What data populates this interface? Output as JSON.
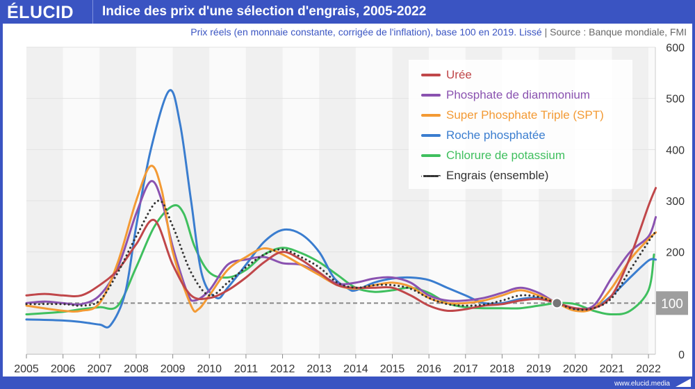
{
  "header": {
    "logo": "ÉLUCID",
    "title": "Indice des prix d'une sélection d'engrais, 2005-2022"
  },
  "subtitle": {
    "text": "Prix réels (en monnaie constante, corrigée de l'inflation), base 100 en 2019. Lissé",
    "sep": " | ",
    "source": "Source : Banque mondiale, FMI"
  },
  "footer": {
    "url": "www.elucid.media"
  },
  "chart_data": {
    "type": "line",
    "title": "Indice des prix d'une sélection d'engrais, 2005-2022",
    "xlabel": "",
    "ylabel": "",
    "xlim": [
      2005,
      2022.2
    ],
    "ylim": [
      0,
      600
    ],
    "xticks": [
      "2005",
      "2006",
      "2007",
      "2008",
      "2009",
      "2010",
      "2011",
      "2012",
      "2013",
      "2014",
      "2015",
      "2016",
      "2017",
      "2018",
      "2019",
      "2020",
      "2021",
      "2022"
    ],
    "yticks": [
      "0",
      "100",
      "200",
      "300",
      "400",
      "500",
      "600"
    ],
    "reference": {
      "value": 100,
      "label": "100",
      "marker_x": 2019.5
    },
    "legend_position": "top-right",
    "series": [
      {
        "name": "Urée",
        "color": "#c0474a",
        "style": "solid",
        "x": [
          2005,
          2005.5,
          2006,
          2006.5,
          2007,
          2007.5,
          2008,
          2008.5,
          2009,
          2009.5,
          2010,
          2010.5,
          2011,
          2011.5,
          2012,
          2012.5,
          2013,
          2013.5,
          2014,
          2014.5,
          2015,
          2015.5,
          2016,
          2016.5,
          2017,
          2017.5,
          2018,
          2018.5,
          2019,
          2019.5,
          2020,
          2020.5,
          2021,
          2021.5,
          2022,
          2022.2
        ],
        "y": [
          115,
          118,
          115,
          115,
          135,
          165,
          215,
          262,
          175,
          115,
          110,
          125,
          150,
          180,
          200,
          185,
          160,
          135,
          130,
          130,
          130,
          115,
          95,
          85,
          88,
          95,
          98,
          105,
          108,
          100,
          90,
          90,
          115,
          190,
          290,
          325
        ]
      },
      {
        "name": "Phosphate de diammonium",
        "color": "#8a52b0",
        "style": "solid",
        "x": [
          2005,
          2005.5,
          2006,
          2006.5,
          2007,
          2007.5,
          2008,
          2008.4,
          2008.7,
          2009,
          2009.4,
          2009.6,
          2010,
          2010.5,
          2011,
          2011.5,
          2012,
          2012.5,
          2013,
          2013.5,
          2014,
          2014.5,
          2015,
          2015.5,
          2016,
          2016.5,
          2017,
          2017.5,
          2018,
          2018.5,
          2019,
          2019.5,
          2020,
          2020.5,
          2021,
          2021.5,
          2022,
          2022.2
        ],
        "y": [
          100,
          103,
          100,
          98,
          115,
          170,
          275,
          338,
          300,
          210,
          120,
          105,
          125,
          175,
          185,
          190,
          178,
          175,
          158,
          138,
          140,
          148,
          150,
          140,
          115,
          105,
          105,
          110,
          120,
          130,
          120,
          100,
          90,
          95,
          150,
          200,
          230,
          268
        ]
      },
      {
        "name": "Super Phosphate Triple (SPT)",
        "color": "#f39a34",
        "style": "solid",
        "x": [
          2005,
          2006,
          2006.5,
          2007,
          2007.5,
          2008,
          2008.4,
          2008.7,
          2009,
          2009.5,
          2009.7,
          2010,
          2010.5,
          2011,
          2011.5,
          2012,
          2012.5,
          2013,
          2013.5,
          2014,
          2014.5,
          2015,
          2015.5,
          2016,
          2016.5,
          2017,
          2017.5,
          2018,
          2018.5,
          2019,
          2019.5,
          2020,
          2020.5,
          2021,
          2021.5,
          2022,
          2022.2
        ],
        "y": [
          95,
          85,
          85,
          100,
          180,
          300,
          368,
          320,
          200,
          95,
          88,
          115,
          165,
          190,
          207,
          195,
          175,
          155,
          135,
          128,
          135,
          140,
          132,
          110,
          100,
          100,
          105,
          115,
          125,
          115,
          100,
          85,
          90,
          130,
          185,
          225,
          238
        ]
      },
      {
        "name": "Roche phosphatée",
        "color": "#3a7dcf",
        "style": "solid",
        "x": [
          2005,
          2006,
          2006.5,
          2007,
          2007.3,
          2007.7,
          2008,
          2008.4,
          2008.9,
          2009.2,
          2009.5,
          2009.8,
          2010.2,
          2010.5,
          2011,
          2011.5,
          2012,
          2012.5,
          2013,
          2013.4,
          2013.8,
          2014,
          2014.5,
          2015,
          2015.5,
          2016,
          2016.5,
          2017,
          2017.5,
          2018,
          2018.5,
          2019,
          2019.5,
          2020,
          2020.5,
          2021,
          2021.5,
          2022,
          2022.2
        ],
        "y": [
          68,
          66,
          63,
          58,
          57,
          120,
          250,
          400,
          515,
          450,
          300,
          155,
          110,
          130,
          175,
          220,
          243,
          235,
          200,
          150,
          128,
          125,
          140,
          148,
          150,
          145,
          130,
          115,
          100,
          100,
          108,
          110,
          100,
          87,
          90,
          115,
          150,
          183,
          185
        ]
      },
      {
        "name": "Chlorure de potassium",
        "color": "#3fbf5e",
        "style": "solid",
        "x": [
          2005,
          2006,
          2006.5,
          2007,
          2007.5,
          2008,
          2008.5,
          2009,
          2009.3,
          2009.6,
          2010,
          2010.5,
          2011,
          2011.5,
          2012,
          2012.5,
          2013,
          2013.5,
          2014,
          2014.5,
          2015,
          2015.5,
          2016,
          2016.5,
          2017,
          2017.5,
          2018,
          2018.5,
          2019,
          2019.5,
          2020,
          2020.5,
          2021,
          2021.5,
          2022,
          2022.15
        ],
        "y": [
          78,
          83,
          88,
          92,
          95,
          170,
          250,
          290,
          275,
          210,
          160,
          150,
          165,
          195,
          208,
          198,
          180,
          155,
          130,
          122,
          125,
          130,
          120,
          100,
          92,
          90,
          90,
          90,
          95,
          100,
          98,
          85,
          78,
          85,
          125,
          195
        ]
      },
      {
        "name": "Engrais (ensemble)",
        "color": "#333333",
        "style": "dotted",
        "x": [
          2005,
          2006,
          2006.5,
          2007,
          2007.5,
          2008,
          2008.6,
          2009,
          2009.5,
          2010,
          2010.5,
          2011,
          2011.5,
          2012,
          2012.5,
          2013,
          2013.5,
          2014,
          2014.5,
          2015,
          2015.5,
          2016,
          2016.5,
          2017,
          2017.5,
          2018,
          2018.5,
          2019,
          2019.5,
          2020,
          2020.5,
          2021,
          2021.5,
          2022,
          2022.2
        ],
        "y": [
          98,
          98,
          95,
          105,
          160,
          230,
          300,
          250,
          160,
          115,
          140,
          170,
          195,
          205,
          190,
          170,
          140,
          130,
          135,
          135,
          128,
          110,
          98,
          95,
          97,
          105,
          115,
          112,
          100,
          88,
          90,
          110,
          165,
          220,
          240
        ]
      }
    ]
  }
}
